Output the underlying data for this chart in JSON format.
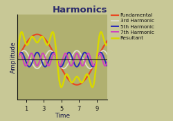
{
  "title": "Harmonics",
  "xlabel": "Time",
  "ylabel": "Amplitude",
  "bg_color": "#c8c896",
  "plot_bg_color": "#b0b070",
  "xticks": [
    1,
    3,
    5,
    7,
    9
  ],
  "xlim": [
    0.0,
    10.2
  ],
  "ylim": [
    -2.2,
    2.5
  ],
  "legend_entries": [
    "Fundamental",
    "3rd Harmonic",
    "5th Harmonic",
    "7th Harmonic",
    "Resultant"
  ],
  "line_colors": [
    "#e84820",
    "#dcdcc8",
    "#2828b8",
    "#d040c0",
    "#d8d800"
  ],
  "line_widths": [
    1.6,
    1.4,
    1.4,
    1.4,
    1.8
  ],
  "fundamental_amp": 1.4,
  "harmonic_amps": [
    0.5,
    0.4,
    0.35
  ],
  "title_fontsize": 9.5,
  "label_fontsize": 6.5,
  "tick_fontsize": 6,
  "legend_fontsize": 5.2,
  "title_color": "#2a2a6a",
  "label_color": "#1a1a4a",
  "tick_color": "#111111"
}
